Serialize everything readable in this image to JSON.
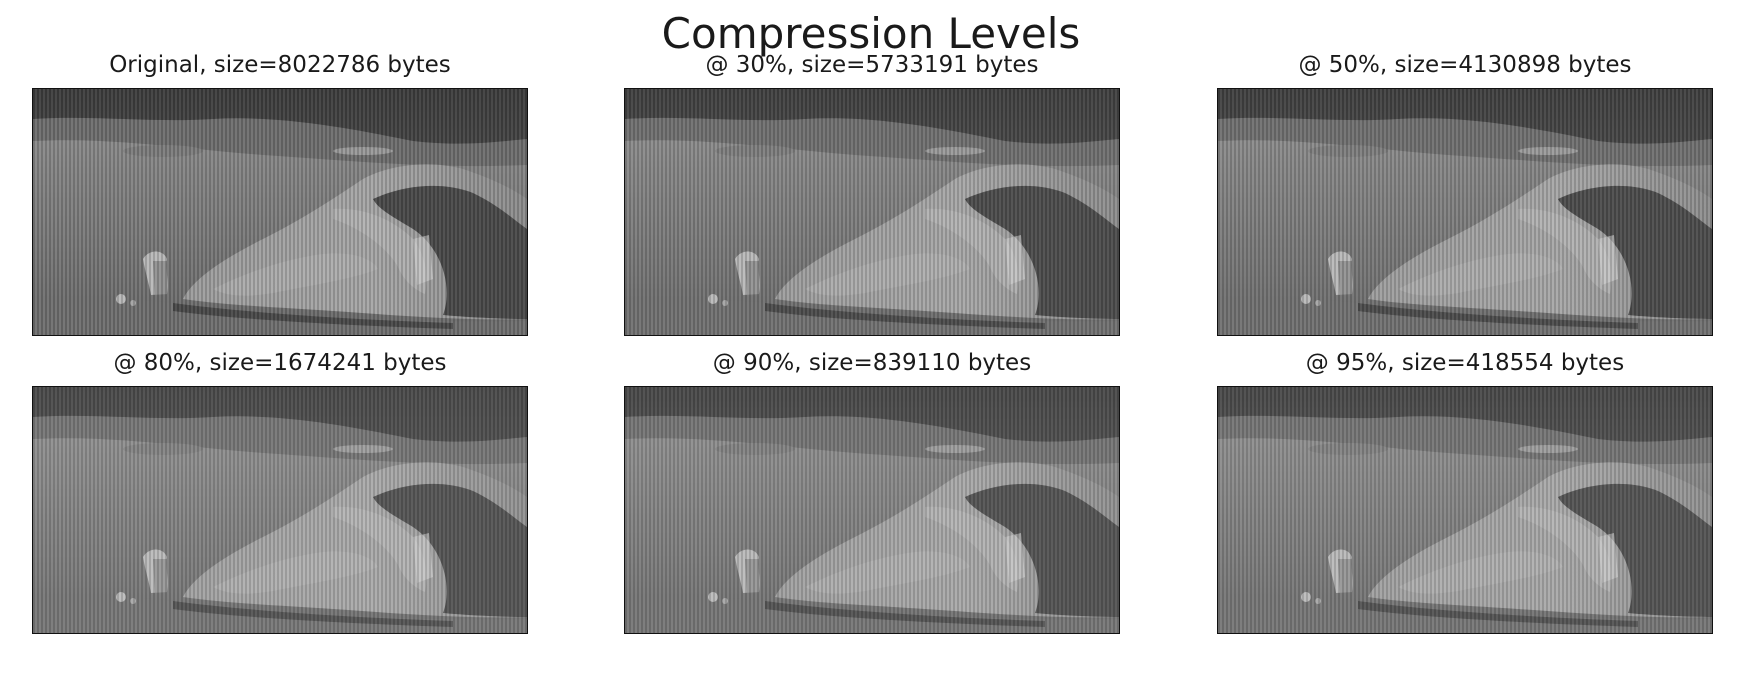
{
  "figure": {
    "title": "Compression Levels"
  },
  "chart_data": {
    "type": "image-grid",
    "title": "Compression Levels",
    "subject": "grayscale photograph of a large boulder on a lunar landscape",
    "panels": [
      {
        "title": "Original, size=8022786 bytes",
        "label": "Original",
        "size_bytes": 8022786,
        "tint": "#ffffff"
      },
      {
        "title": "@ 30%, size=5733191 bytes",
        "quality_pct": 30,
        "size_bytes": 5733191,
        "tint": "#ffffff"
      },
      {
        "title": "@ 50%, size=4130898 bytes",
        "quality_pct": 50,
        "size_bytes": 4130898,
        "tint": "#ffffff"
      },
      {
        "title": "@ 80%, size=1674241 bytes",
        "quality_pct": 80,
        "size_bytes": 1674241,
        "tint": "#e6e6e6"
      },
      {
        "title": "@ 90%, size=839110 bytes",
        "quality_pct": 90,
        "size_bytes": 839110,
        "tint": "#dedede"
      },
      {
        "title": "@ 95%, size=418554 bytes",
        "quality_pct": 95,
        "size_bytes": 418554,
        "tint": "#d8d8d8"
      }
    ]
  }
}
